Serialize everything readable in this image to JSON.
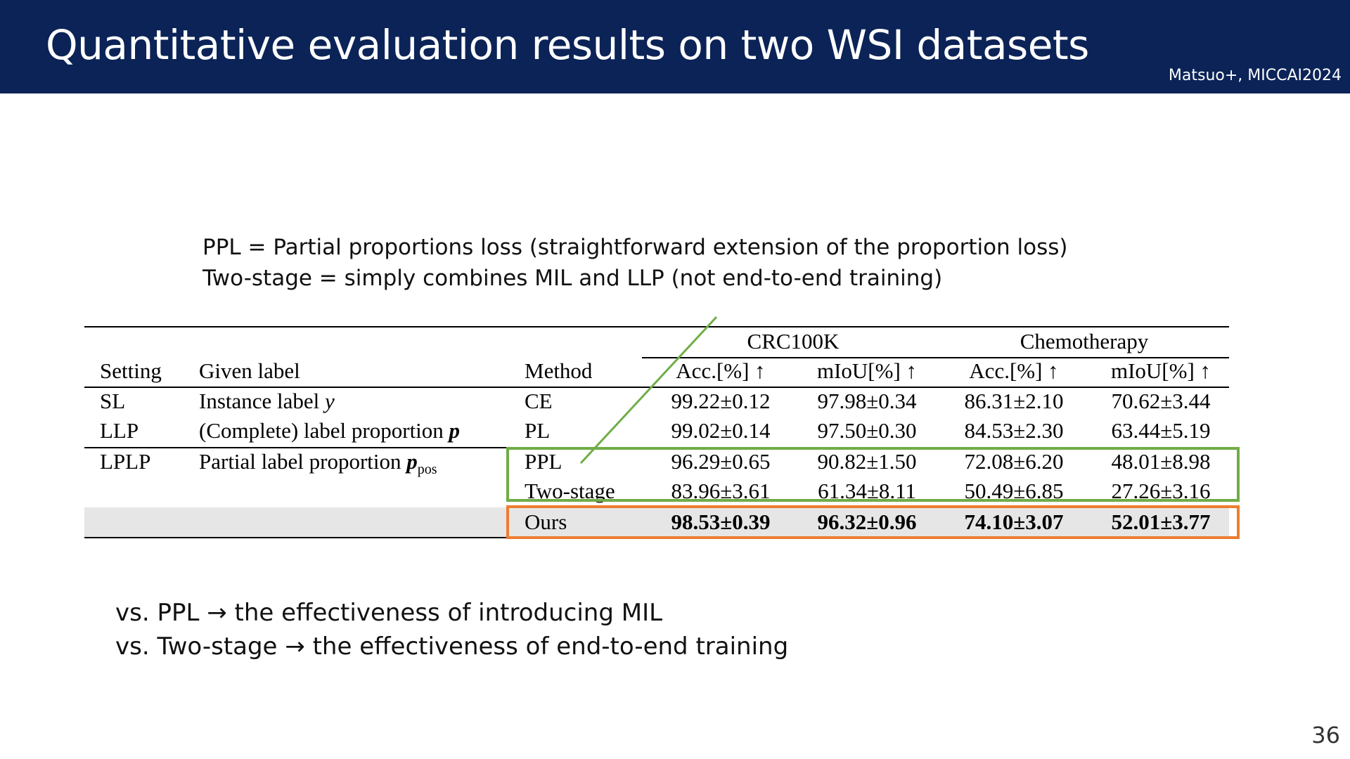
{
  "slide": {
    "title": "Quantitative evaluation results on two WSI datasets",
    "citation": "Matsuo+, MICCAI2024",
    "page_number": "36",
    "colors": {
      "header_bg": "#0b2357",
      "highlight_green": "#70ad47",
      "highlight_orange": "#ed7d31",
      "ours_row_bg": "#e6e6e6"
    }
  },
  "definitions": [
    "PPL = Partial proportions loss (straightforward extension of the proportion loss)",
    "Two-stage = simply combines MIL and LLP (not end-to-end training)"
  ],
  "table": {
    "group_headers": {
      "crc": "CRC100K",
      "chemo": "Chemotherapy"
    },
    "headers": {
      "setting": "Setting",
      "given_label": "Given label",
      "method": "Method",
      "crc_acc": "Acc.[%] ↑",
      "crc_miou": "mIoU[%] ↑",
      "chemo_acc": "Acc.[%] ↑",
      "chemo_miou": "mIoU[%] ↑"
    },
    "rows": [
      {
        "setting": "SL",
        "given_label": "Instance label ",
        "label_symbol": "y",
        "label_sub": "",
        "method": "CE",
        "crc_acc": "99.22±0.12",
        "crc_miou": "97.98±0.34",
        "chemo_acc": "86.31±2.10",
        "chemo_miou": "70.62±3.44"
      },
      {
        "setting": "LLP",
        "given_label": "(Complete) label proportion ",
        "label_symbol": "p",
        "label_sub": "",
        "method": "PL",
        "crc_acc": "99.02±0.14",
        "crc_miou": "97.50±0.30",
        "chemo_acc": "84.53±2.30",
        "chemo_miou": "63.44±5.19"
      },
      {
        "setting": "LPLP",
        "given_label": "Partial label proportion ",
        "label_symbol": "p",
        "label_sub": "pos",
        "method": "PPL",
        "crc_acc": "96.29±0.65",
        "crc_miou": "90.82±1.50",
        "chemo_acc": "72.08±6.20",
        "chemo_miou": "48.01±8.98"
      },
      {
        "setting": "",
        "given_label": "",
        "label_symbol": "",
        "label_sub": "",
        "method": "Two-stage",
        "crc_acc": "83.96±3.61",
        "crc_miou": "61.34±8.11",
        "chemo_acc": "50.49±6.85",
        "chemo_miou": "27.26±3.16"
      },
      {
        "setting": "",
        "given_label": "",
        "label_symbol": "",
        "label_sub": "",
        "method": "Ours",
        "crc_acc": "98.53±0.39",
        "crc_miou": "96.32±0.96",
        "chemo_acc": "74.10±3.07",
        "chemo_miou": "52.01±3.77"
      }
    ]
  },
  "notes": [
    "vs. PPL → the effectiveness of introducing MIL",
    "vs. Two-stage → the effectiveness of end-to-end training"
  ]
}
